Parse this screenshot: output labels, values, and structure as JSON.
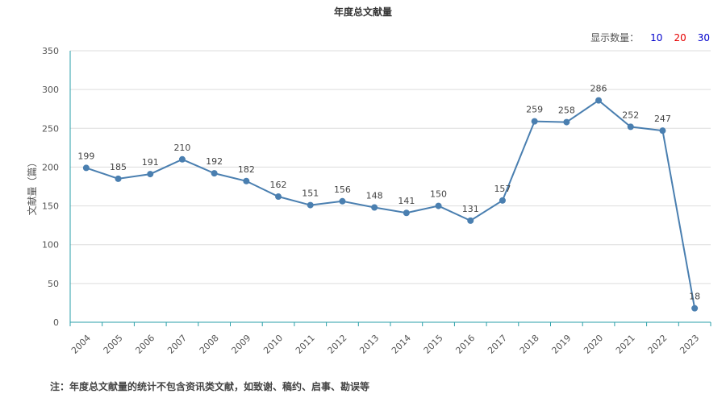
{
  "title": "年度总文献量",
  "display_count": {
    "label": "显示数量：",
    "options": [
      {
        "value": "10",
        "color": "#0000cc"
      },
      {
        "value": "20",
        "color": "#e60000"
      },
      {
        "value": "30",
        "color": "#0000cc"
      }
    ]
  },
  "note": "注：年度总文献量的统计不包含资讯类文献，如致谢、稿约、启事、勘误等",
  "colors": {
    "line": "#4a7fb0",
    "axis": "#2a9fa8",
    "grid": "#dddddd"
  },
  "chart_data": {
    "type": "line",
    "title": "年度总文献量",
    "ylabel": "文献量（篇）",
    "xlabel": "",
    "ylim": [
      0,
      350
    ],
    "yticks": [
      0,
      50,
      100,
      150,
      200,
      250,
      300,
      350
    ],
    "grid": true,
    "categories": [
      "2004",
      "2005",
      "2006",
      "2007",
      "2008",
      "2009",
      "2010",
      "2011",
      "2012",
      "2013",
      "2014",
      "2015",
      "2016",
      "2017",
      "2018",
      "2019",
      "2020",
      "2021",
      "2022",
      "2023"
    ],
    "series": [
      {
        "values": [
          199,
          185,
          191,
          210,
          192,
          182,
          162,
          151,
          156,
          148,
          141,
          150,
          131,
          157,
          259,
          258,
          286,
          252,
          247,
          18
        ]
      }
    ]
  }
}
